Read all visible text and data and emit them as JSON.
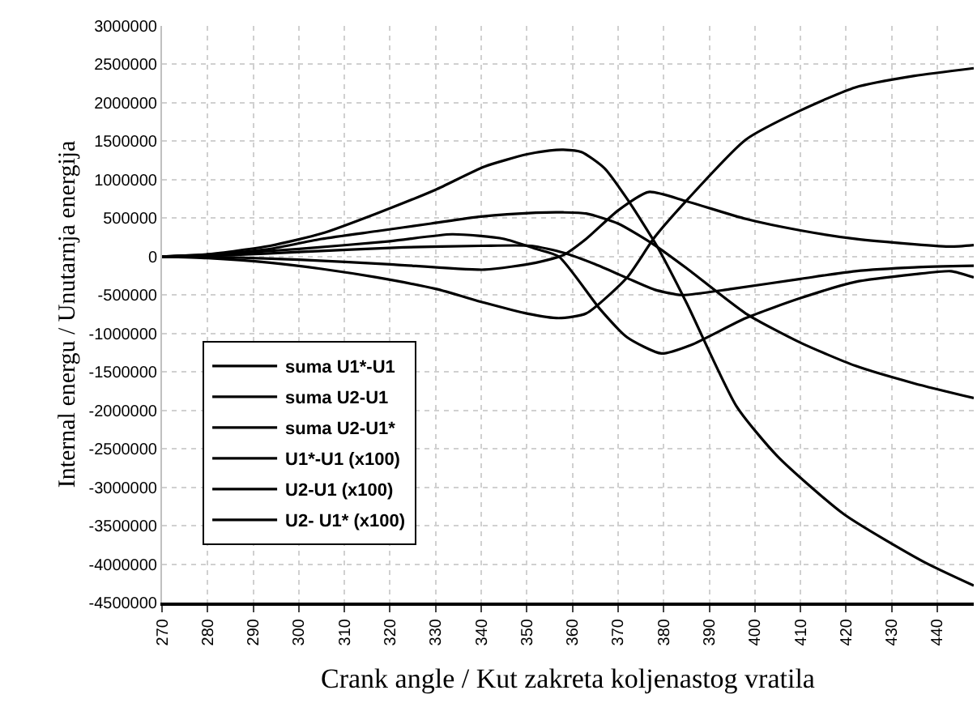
{
  "chart_data": {
    "type": "line",
    "xlabel": "Crank angle / Kut zakreta koljenastog vratila",
    "ylabel": "Internal energu / Unutarnja energija",
    "xlim": [
      270,
      448
    ],
    "xticks": [
      270,
      280,
      290,
      300,
      310,
      320,
      330,
      340,
      350,
      360,
      370,
      380,
      390,
      400,
      410,
      420,
      430,
      440
    ],
    "ylim": [
      -4500000,
      3000000
    ],
    "yticks": [
      -4500000,
      -4000000,
      -3500000,
      -3000000,
      -2500000,
      -2000000,
      -1500000,
      -1000000,
      -500000,
      0,
      500000,
      1000000,
      1500000,
      2000000,
      2500000,
      3000000
    ],
    "grid": true,
    "legend": "bottom left",
    "marker": "none",
    "line_style": "solid",
    "series": [
      {
        "name": "suma U1*-U1",
        "color": "#000000",
        "x": [
          270,
          280,
          293.7,
          305,
          317,
          330,
          340.7,
          350,
          355,
          358,
          362,
          367,
          372,
          378.5,
          385,
          396,
          405,
          419.5,
          437,
          448
        ],
        "values": [
          0,
          30000,
          140000,
          300000,
          560000,
          870000,
          1170000,
          1330000,
          1380000,
          1390000,
          1360000,
          1150000,
          750000,
          140000,
          -600000,
          -1950000,
          -2600000,
          -3350000,
          -3970000,
          -4280000
        ]
      },
      {
        "name": "suma U2-U1",
        "color": "#000000",
        "x": [
          270,
          280,
          293.7,
          305,
          317,
          329,
          340,
          352,
          358,
          363,
          370,
          378,
          385,
          398,
          410,
          422,
          435,
          448
        ],
        "values": [
          0,
          20000,
          100000,
          230000,
          330000,
          430000,
          520000,
          570000,
          575000,
          560000,
          430000,
          150000,
          -150000,
          -740000,
          -1120000,
          -1420000,
          -1650000,
          -1840000
        ]
      },
      {
        "name": "suma U2-U1*",
        "color": "#000000",
        "x": [
          270,
          280,
          293.7,
          305,
          317,
          330,
          340.7,
          350,
          357,
          363,
          372,
          378,
          385.5,
          398,
          410,
          422,
          435,
          448
        ],
        "values": [
          0,
          -20000,
          -80000,
          -160000,
          -270000,
          -420000,
          -600000,
          -740000,
          -800000,
          -740000,
          -270000,
          250000,
          760000,
          1520000,
          1900000,
          2200000,
          2350000,
          2450000
        ]
      },
      {
        "name": "U1*-U1 (x100)",
        "color": "#000000",
        "x": [
          270,
          285,
          300,
          320,
          340.7,
          352,
          358,
          363,
          370,
          376.7,
          385,
          398,
          410,
          422,
          435,
          443,
          448
        ],
        "values": [
          0,
          -10000,
          -40000,
          -100000,
          -170000,
          -80000,
          20000,
          230000,
          600000,
          840000,
          720000,
          490000,
          340000,
          230000,
          160000,
          130000,
          150000
        ]
      },
      {
        "name": "U2-U1 (x100)",
        "color": "#000000",
        "x": [
          270,
          285,
          300,
          320,
          333.6,
          345,
          352,
          357,
          366,
          372,
          379.5,
          386,
          398,
          410,
          422,
          435,
          443,
          448
        ],
        "values": [
          0,
          40000,
          100000,
          200000,
          290000,
          230000,
          100000,
          0,
          -680000,
          -1050000,
          -1260000,
          -1150000,
          -800000,
          -540000,
          -330000,
          -230000,
          -190000,
          -270000
        ]
      },
      {
        "name": "U2- U1* (x100)",
        "color": "#000000",
        "x": [
          270,
          285,
          300,
          323,
          340,
          351,
          358,
          365,
          372,
          378,
          384,
          395,
          410,
          422,
          435,
          448
        ],
        "values": [
          0,
          20000,
          60000,
          120000,
          140000,
          140000,
          50000,
          -100000,
          -280000,
          -430000,
          -500000,
          -420000,
          -290000,
          -190000,
          -140000,
          -120000
        ]
      }
    ]
  }
}
